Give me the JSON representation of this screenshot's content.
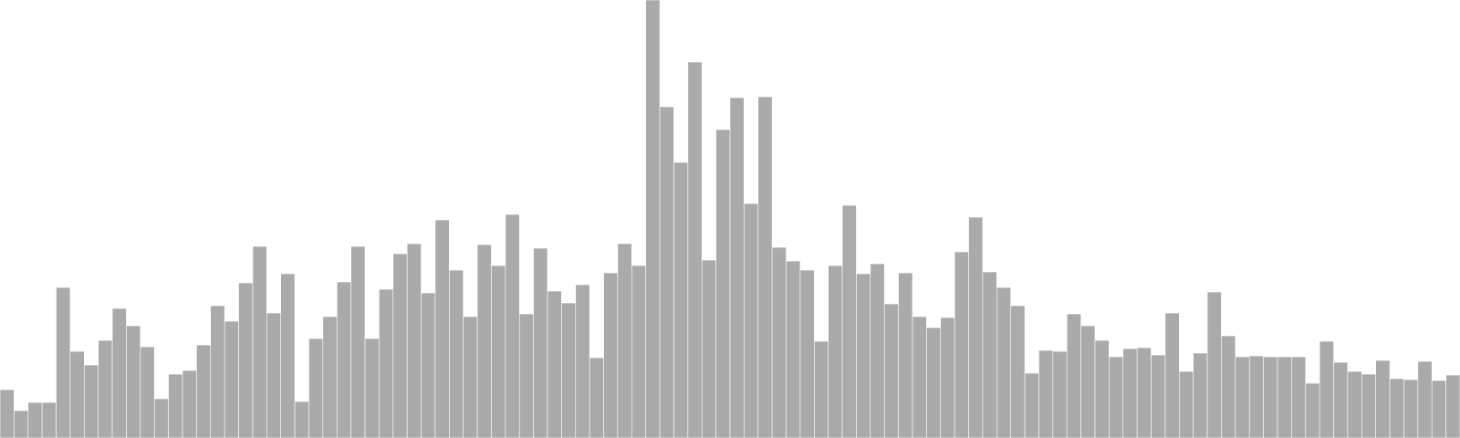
{
  "chart_data": {
    "type": "bar",
    "bar_color": "#aaaaaa",
    "bar_stroke_color": "#ffffff",
    "ylim": [
      0,
      480
    ],
    "grid": false,
    "legend": "none",
    "values": [
      53,
      30,
      39,
      39,
      165,
      95,
      80,
      107,
      142,
      123,
      100,
      43,
      70,
      74,
      102,
      145,
      128,
      170,
      210,
      137,
      180,
      40,
      109,
      133,
      171,
      210,
      109,
      163,
      202,
      213,
      159,
      239,
      184,
      133,
      212,
      189,
      245,
      136,
      208,
      161,
      148,
      168,
      88,
      181,
      213,
      189,
      480,
      363,
      302,
      412,
      195,
      338,
      373,
      257,
      374,
      209,
      194,
      184,
      106,
      189,
      255,
      180,
      191,
      147,
      181,
      133,
      121,
      132,
      204,
      242,
      182,
      165,
      145,
      71,
      96,
      95,
      136,
      123,
      107,
      89,
      98,
      99,
      91,
      137,
      73,
      93,
      160,
      112,
      89,
      90,
      89,
      89,
      89,
      60,
      106,
      83,
      73,
      70,
      85,
      65,
      64,
      84,
      63,
      69
    ]
  }
}
